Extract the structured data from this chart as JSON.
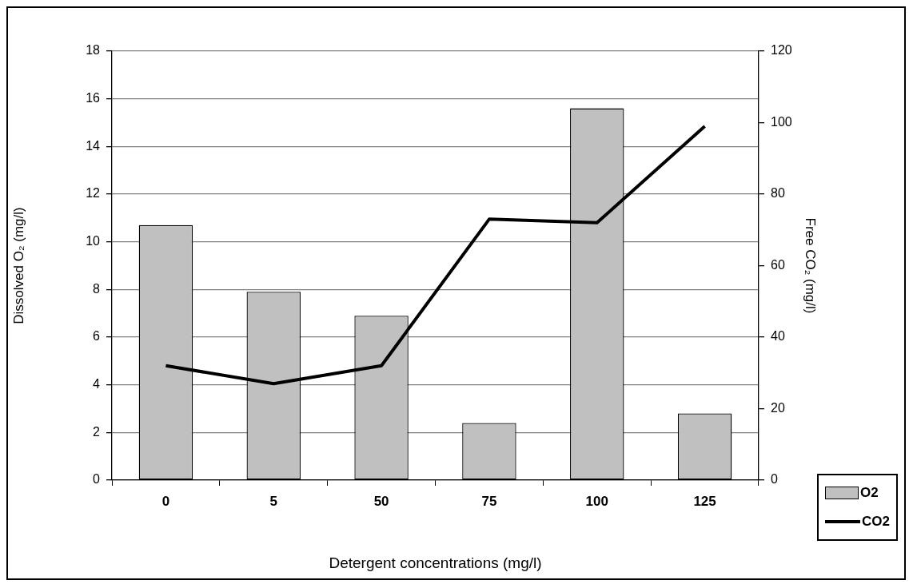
{
  "chart_data": {
    "type": "bar",
    "xlabel": "Detergent concentrations (mg/l)",
    "ylabel": "Dissolved O₂ (mg/l)",
    "y2label": "Free CO₂ (mg/l)",
    "categories": [
      "0",
      "5",
      "50",
      "75",
      "100",
      "125"
    ],
    "series": [
      {
        "name": "O2",
        "color": "#c0c0c0",
        "values": [
          10.7,
          7.9,
          6.9,
          2.4,
          15.6,
          2.8
        ]
      },
      {
        "name": "CO2",
        "type": "line",
        "axis": "y2",
        "color": "#000000",
        "values": [
          32,
          27,
          32,
          73,
          72,
          99
        ]
      }
    ],
    "ylim": [
      0,
      18
    ],
    "yticks": [
      0,
      2,
      4,
      6,
      8,
      10,
      12,
      14,
      16,
      18
    ],
    "y2lim": [
      0,
      120
    ],
    "y2ticks": [
      0,
      20,
      40,
      60,
      80,
      100,
      120
    ],
    "grid": "y",
    "legend": "bottom right",
    "marker": "none"
  }
}
